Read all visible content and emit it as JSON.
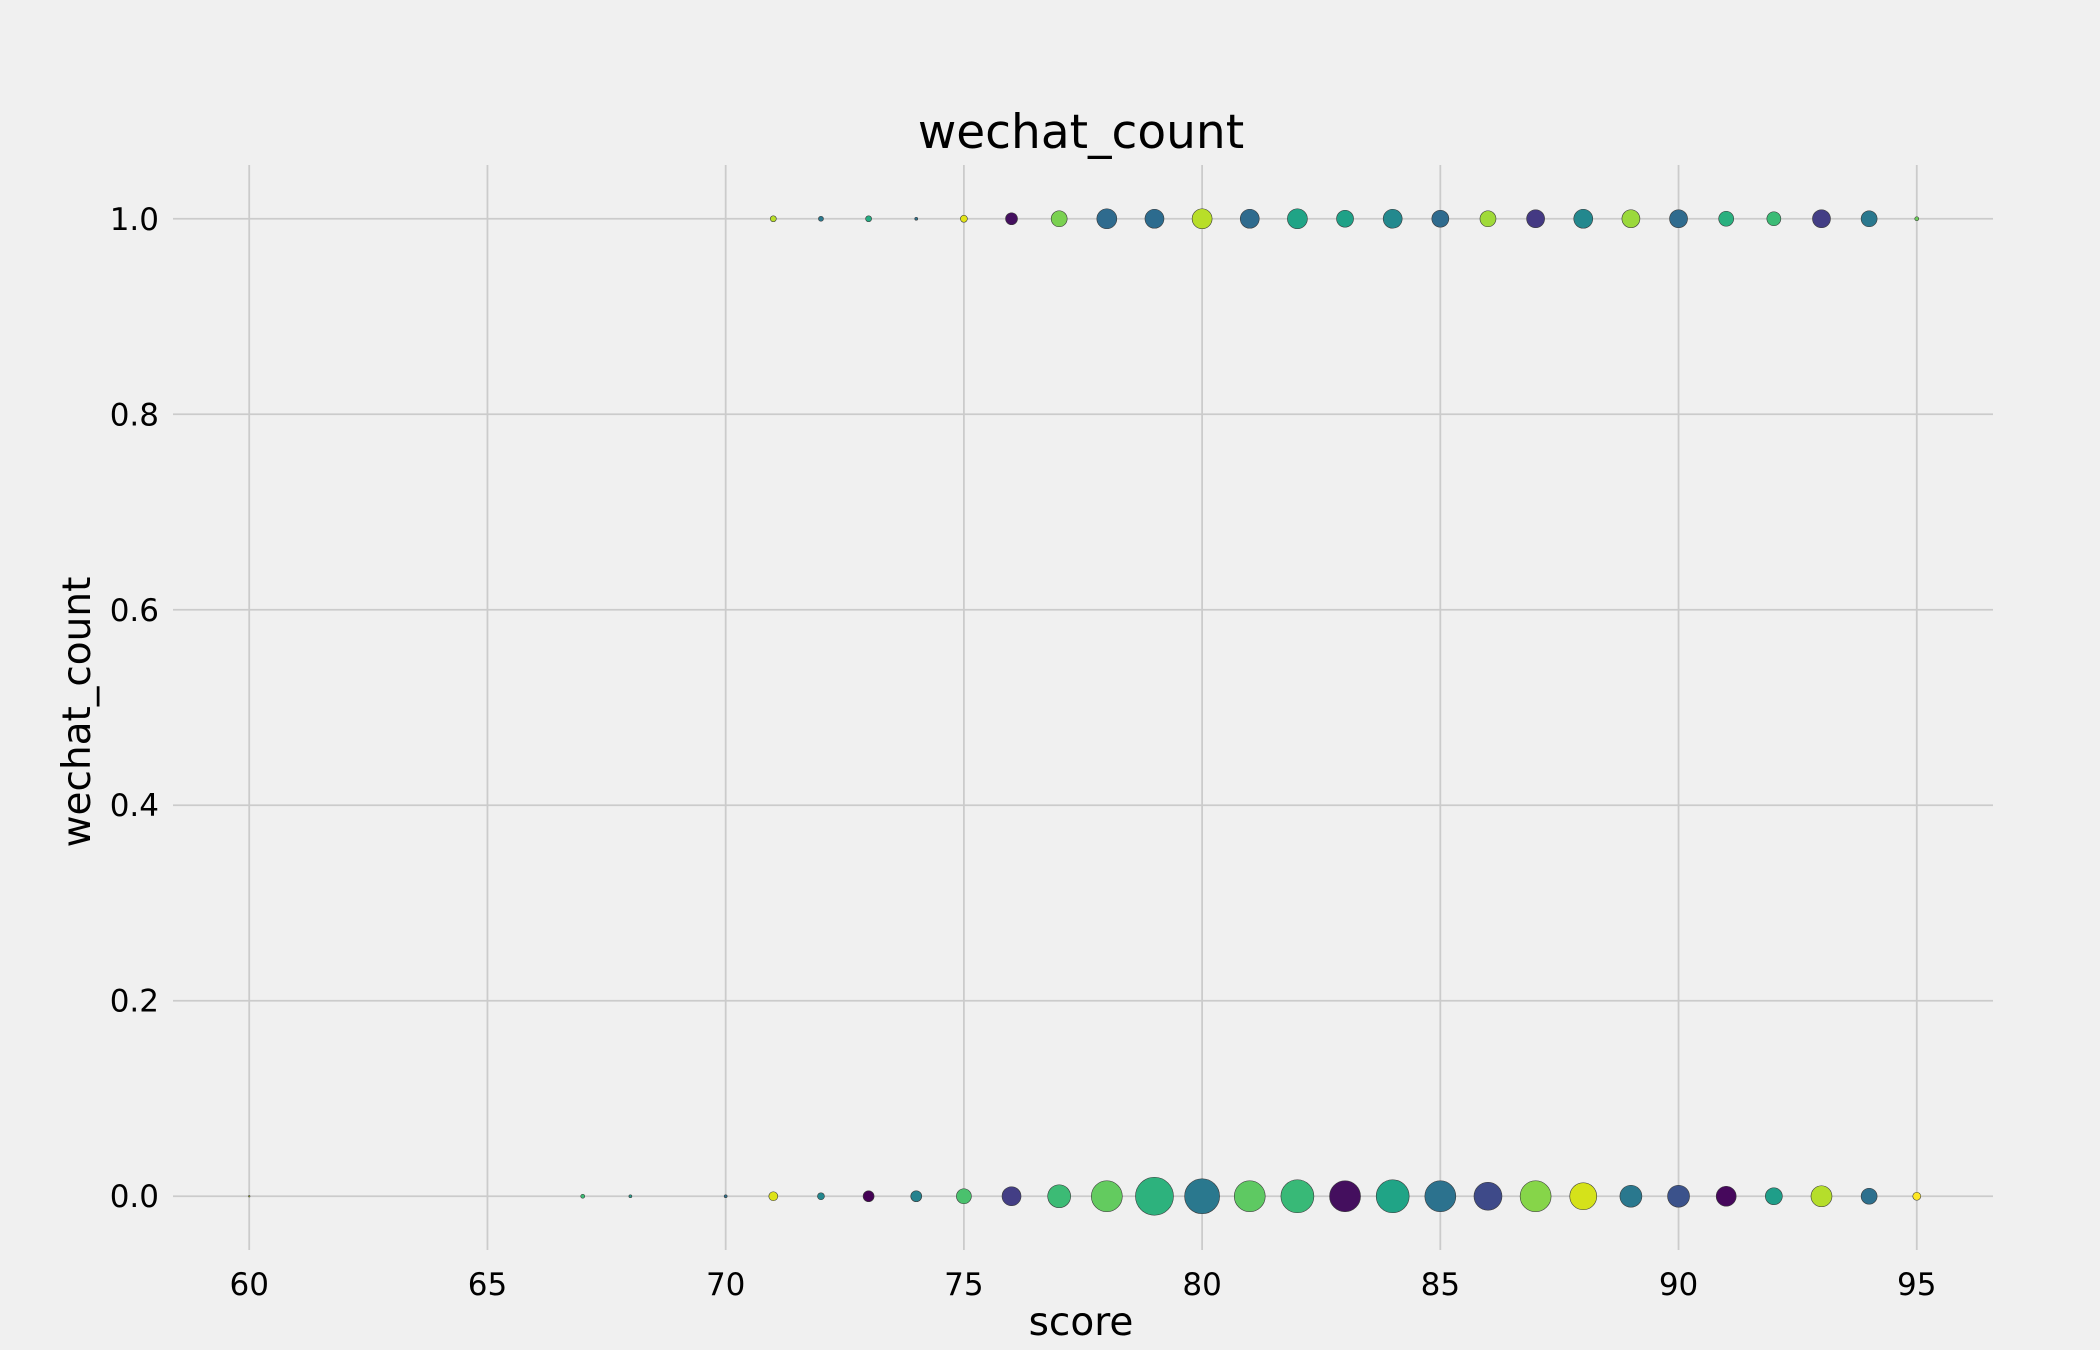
{
  "chart_data": {
    "type": "scatter",
    "title": "wechat_count",
    "xlabel": "score",
    "ylabel": "wechat_count",
    "xlim": [
      58.4,
      96.6
    ],
    "ylim": [
      -0.055,
      1.055
    ],
    "x_ticks": [
      60,
      65,
      70,
      75,
      80,
      85,
      90,
      95
    ],
    "y_ticks": [
      0.0,
      0.2,
      0.4,
      0.6,
      0.8,
      1.0
    ],
    "x_tick_labels": [
      "60",
      "65",
      "70",
      "75",
      "80",
      "85",
      "90",
      "95"
    ],
    "y_tick_labels": [
      "0.0",
      "0.2",
      "0.4",
      "0.6",
      "0.8",
      "1.0"
    ],
    "grid": true,
    "colormap": "viridis",
    "points": [
      {
        "x": 60,
        "y": 0,
        "size": 1,
        "color": "#c8e020"
      },
      {
        "x": 67,
        "y": 0,
        "size": 4,
        "color": "#3dbc74"
      },
      {
        "x": 68,
        "y": 0,
        "size": 3,
        "color": "#2a9d8c"
      },
      {
        "x": 70,
        "y": 0,
        "size": 3,
        "color": "#2c728e"
      },
      {
        "x": 71,
        "y": 0,
        "size": 9,
        "color": "#dde318"
      },
      {
        "x": 72,
        "y": 0,
        "size": 7,
        "color": "#24878e"
      },
      {
        "x": 73,
        "y": 0,
        "size": 11,
        "color": "#440154"
      },
      {
        "x": 74,
        "y": 0,
        "size": 11,
        "color": "#26828e"
      },
      {
        "x": 75,
        "y": 0,
        "size": 15,
        "color": "#4ac16d"
      },
      {
        "x": 76,
        "y": 0,
        "size": 19,
        "color": "#433e85"
      },
      {
        "x": 77,
        "y": 0,
        "size": 23,
        "color": "#3cbb75"
      },
      {
        "x": 78,
        "y": 0,
        "size": 31,
        "color": "#63cb5f"
      },
      {
        "x": 79,
        "y": 0,
        "size": 38,
        "color": "#2db27d"
      },
      {
        "x": 80,
        "y": 0,
        "size": 35,
        "color": "#2a788e"
      },
      {
        "x": 81,
        "y": 0,
        "size": 31,
        "color": "#5ec962"
      },
      {
        "x": 82,
        "y": 0,
        "size": 33,
        "color": "#38b977"
      },
      {
        "x": 83,
        "y": 0,
        "size": 31,
        "color": "#440f5e"
      },
      {
        "x": 84,
        "y": 0,
        "size": 33,
        "color": "#20a486"
      },
      {
        "x": 85,
        "y": 0,
        "size": 31,
        "color": "#2c728e"
      },
      {
        "x": 86,
        "y": 0,
        "size": 28,
        "color": "#3e4a89"
      },
      {
        "x": 87,
        "y": 0,
        "size": 31,
        "color": "#86d549"
      },
      {
        "x": 88,
        "y": 0,
        "size": 27,
        "color": "#d5e21a"
      },
      {
        "x": 89,
        "y": 0,
        "size": 22,
        "color": "#2a788e"
      },
      {
        "x": 90,
        "y": 0,
        "size": 22,
        "color": "#3b528b"
      },
      {
        "x": 91,
        "y": 0,
        "size": 20,
        "color": "#46085c"
      },
      {
        "x": 92,
        "y": 0,
        "size": 17,
        "color": "#1f9e89"
      },
      {
        "x": 93,
        "y": 0,
        "size": 21,
        "color": "#b5de2b"
      },
      {
        "x": 94,
        "y": 0,
        "size": 16,
        "color": "#2d708e"
      },
      {
        "x": 95,
        "y": 0,
        "size": 8,
        "color": "#fde725"
      },
      {
        "x": 71,
        "y": 1,
        "size": 6,
        "color": "#b8de29"
      },
      {
        "x": 72,
        "y": 1,
        "size": 5,
        "color": "#2a788e"
      },
      {
        "x": 73,
        "y": 1,
        "size": 6,
        "color": "#25ac82"
      },
      {
        "x": 74,
        "y": 1,
        "size": 3,
        "color": "#2c728e"
      },
      {
        "x": 75,
        "y": 1,
        "size": 7,
        "color": "#e2e418"
      },
      {
        "x": 76,
        "y": 1,
        "size": 12,
        "color": "#440f5e"
      },
      {
        "x": 77,
        "y": 1,
        "size": 16,
        "color": "#7ad151"
      },
      {
        "x": 78,
        "y": 1,
        "size": 20,
        "color": "#2f6b8e"
      },
      {
        "x": 79,
        "y": 1,
        "size": 19,
        "color": "#2c6b8e"
      },
      {
        "x": 80,
        "y": 1,
        "size": 20,
        "color": "#b8de29"
      },
      {
        "x": 81,
        "y": 1,
        "size": 19,
        "color": "#2f6b8e"
      },
      {
        "x": 82,
        "y": 1,
        "size": 20,
        "color": "#20a486"
      },
      {
        "x": 83,
        "y": 1,
        "size": 17,
        "color": "#1fa187"
      },
      {
        "x": 84,
        "y": 1,
        "size": 19,
        "color": "#23898e"
      },
      {
        "x": 85,
        "y": 1,
        "size": 17,
        "color": "#2f6b8e"
      },
      {
        "x": 86,
        "y": 1,
        "size": 16,
        "color": "#a0da39"
      },
      {
        "x": 87,
        "y": 1,
        "size": 18,
        "color": "#443983"
      },
      {
        "x": 88,
        "y": 1,
        "size": 19,
        "color": "#23888e"
      },
      {
        "x": 89,
        "y": 1,
        "size": 18,
        "color": "#9bd93c"
      },
      {
        "x": 90,
        "y": 1,
        "size": 18,
        "color": "#2f6b8e"
      },
      {
        "x": 91,
        "y": 1,
        "size": 15,
        "color": "#2ab07f"
      },
      {
        "x": 92,
        "y": 1,
        "size": 14,
        "color": "#3bbb75"
      },
      {
        "x": 93,
        "y": 1,
        "size": 18,
        "color": "#433e85"
      },
      {
        "x": 94,
        "y": 1,
        "size": 16,
        "color": "#2a788e"
      },
      {
        "x": 95,
        "y": 1,
        "size": 4,
        "color": "#6ccd5a"
      }
    ]
  }
}
